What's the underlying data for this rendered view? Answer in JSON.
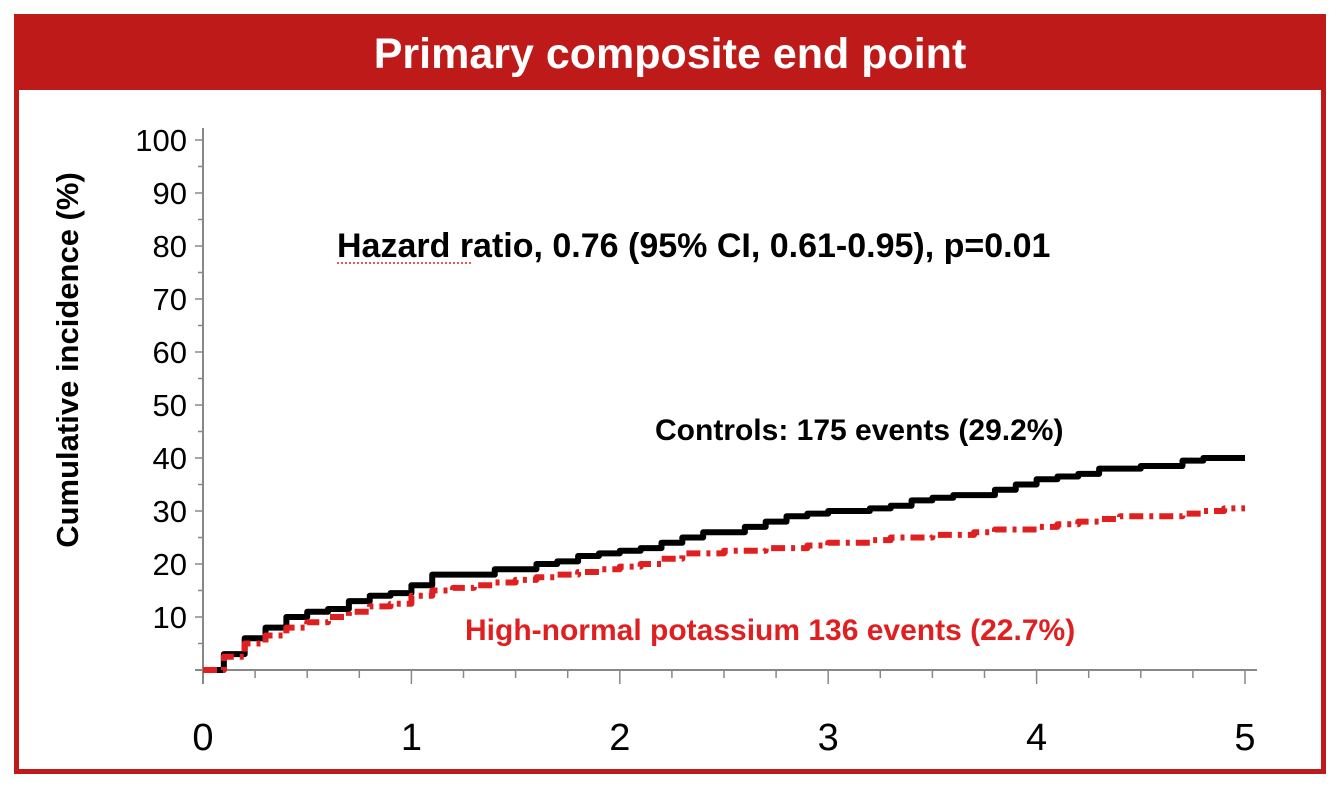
{
  "chart_data": {
    "type": "line",
    "title": "Primary composite end point",
    "xlabel": "",
    "ylabel": "Cumulative incidence (%)",
    "xlim": [
      0,
      5
    ],
    "ylim": [
      0,
      100
    ],
    "x_ticks": [
      "0",
      "1",
      "2",
      "3",
      "4",
      "5"
    ],
    "y_ticks": [
      "10",
      "20",
      "30",
      "40",
      "50",
      "60",
      "70",
      "80",
      "90",
      "100"
    ],
    "grid": false,
    "annotation": "Hazard ratio, 0.76 (95% CI, 0.61-0.95), p=0.01",
    "series": [
      {
        "name": "Controls",
        "label": "Controls: 175 events (29.2%)",
        "color": "#000000",
        "style": "solid",
        "x": [
          0,
          0.1,
          0.2,
          0.3,
          0.4,
          0.5,
          0.6,
          0.7,
          0.8,
          0.9,
          1.0,
          1.1,
          1.2,
          1.3,
          1.4,
          1.5,
          1.6,
          1.7,
          1.8,
          1.9,
          2.0,
          2.1,
          2.2,
          2.3,
          2.4,
          2.5,
          2.6,
          2.7,
          2.8,
          2.9,
          3.0,
          3.1,
          3.2,
          3.3,
          3.4,
          3.5,
          3.6,
          3.7,
          3.8,
          3.9,
          4.0,
          4.1,
          4.2,
          4.3,
          4.4,
          4.5,
          4.6,
          4.7,
          4.8,
          4.9,
          5.0
        ],
        "values": [
          0,
          3,
          6,
          8,
          10,
          11,
          11.5,
          13,
          14,
          14.5,
          16,
          18,
          18,
          18,
          19,
          19,
          20,
          20.5,
          21.5,
          22,
          22.5,
          23,
          24,
          25,
          26,
          26,
          27,
          28,
          29,
          29.5,
          30,
          30,
          30.5,
          31,
          32,
          32.5,
          33,
          33,
          34,
          35,
          36,
          36.5,
          37,
          38,
          38,
          38.5,
          38.5,
          39.5,
          40,
          40,
          40
        ]
      },
      {
        "name": "High-normal potassium",
        "label": "High-normal potassium 136 events (22.7%)",
        "color": "#e02020",
        "style": "dashed",
        "x": [
          0,
          0.1,
          0.2,
          0.3,
          0.4,
          0.5,
          0.6,
          0.7,
          0.8,
          0.9,
          1.0,
          1.1,
          1.2,
          1.3,
          1.4,
          1.5,
          1.6,
          1.7,
          1.8,
          1.9,
          2.0,
          2.1,
          2.2,
          2.3,
          2.4,
          2.5,
          2.6,
          2.7,
          2.8,
          2.9,
          3.0,
          3.1,
          3.2,
          3.3,
          3.4,
          3.5,
          3.6,
          3.7,
          3.8,
          3.9,
          4.0,
          4.1,
          4.2,
          4.3,
          4.4,
          4.5,
          4.6,
          4.7,
          4.8,
          4.9,
          5.0
        ],
        "values": [
          0,
          2.5,
          5,
          6.5,
          8,
          9,
          10,
          11,
          12,
          12.5,
          14,
          15,
          15.5,
          16,
          16.5,
          17,
          17.5,
          18,
          18.5,
          19,
          19.5,
          20,
          21,
          22,
          22,
          22.5,
          22.5,
          23,
          23,
          23.5,
          24,
          24,
          24.5,
          25,
          25,
          25.5,
          25.5,
          26,
          26.5,
          26.5,
          27,
          27.5,
          28,
          28.5,
          29,
          29,
          29,
          29.5,
          30,
          30.5,
          30.5
        ]
      }
    ]
  }
}
